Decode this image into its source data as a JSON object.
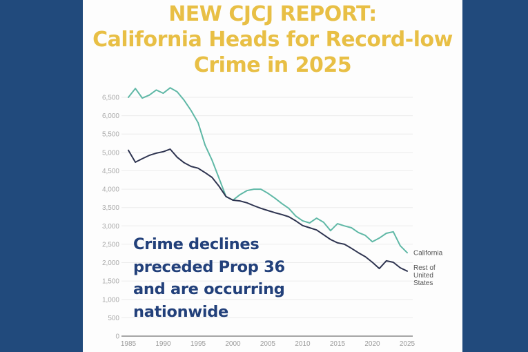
{
  "title": {
    "lines": [
      "NEW CJCJ REPORT:",
      "California Heads for Record-low",
      "Crime in 2025"
    ]
  },
  "annotation": {
    "lines": [
      "Crime declines",
      "preceded Prop 36",
      "and are occurring",
      "nationwide"
    ]
  },
  "colors": {
    "background": "#214a7c",
    "title": "#e8bf45",
    "annotation": "#22407a",
    "california": "#5fb8a6",
    "rest_of_us": "#2e3450"
  },
  "chart_data": {
    "type": "line",
    "title": "NEW CJCJ REPORT: California Heads for Record-low Crime in 2025",
    "xlabel": "",
    "ylabel": "",
    "xlim": [
      1985,
      2025
    ],
    "ylim": [
      0,
      6500
    ],
    "grid": true,
    "x_ticks": [
      "1985",
      "1990",
      "1995",
      "2000",
      "2005",
      "2010",
      "2015",
      "2020",
      "2025"
    ],
    "y_ticks": [
      "0",
      "500",
      "1,000",
      "1,500",
      "2,000",
      "2,500",
      "3,000",
      "3,500",
      "4,000",
      "4,500",
      "5,000",
      "5,500",
      "6,000",
      "6,500"
    ],
    "legend_placement": "right, at line ends",
    "x": [
      1985,
      1986,
      1987,
      1988,
      1989,
      1990,
      1991,
      1992,
      1993,
      1994,
      1995,
      1996,
      1997,
      1998,
      1999,
      2000,
      2001,
      2002,
      2003,
      2004,
      2005,
      2006,
      2007,
      2008,
      2009,
      2010,
      2011,
      2012,
      2013,
      2014,
      2015,
      2016,
      2017,
      2018,
      2019,
      2020,
      2021,
      2022,
      2023,
      2024,
      2025
    ],
    "series": [
      {
        "name": "California",
        "legend_lines": [
          "California"
        ],
        "values": [
          6500,
          6740,
          6480,
          6560,
          6700,
          6610,
          6760,
          6650,
          6420,
          6140,
          5810,
          5200,
          4790,
          4300,
          3800,
          3700,
          3850,
          3960,
          4000,
          4000,
          3890,
          3760,
          3610,
          3480,
          3270,
          3140,
          3080,
          3210,
          3100,
          2870,
          3060,
          3000,
          2950,
          2820,
          2740,
          2570,
          2670,
          2800,
          2840,
          2460,
          2270
        ]
      },
      {
        "name": "Rest of United States",
        "legend_lines": [
          "Rest of",
          "United",
          "States"
        ],
        "values": [
          5060,
          4735,
          4830,
          4920,
          4980,
          5020,
          5090,
          4870,
          4720,
          4620,
          4570,
          4450,
          4320,
          4080,
          3800,
          3700,
          3680,
          3630,
          3550,
          3480,
          3420,
          3360,
          3310,
          3250,
          3140,
          3010,
          2950,
          2890,
          2760,
          2630,
          2540,
          2500,
          2390,
          2270,
          2160,
          2010,
          1840,
          2050,
          2010,
          1860,
          1770
        ]
      }
    ],
    "annotations": [
      "Crime declines preceded Prop 36 and are occurring nationwide"
    ]
  }
}
